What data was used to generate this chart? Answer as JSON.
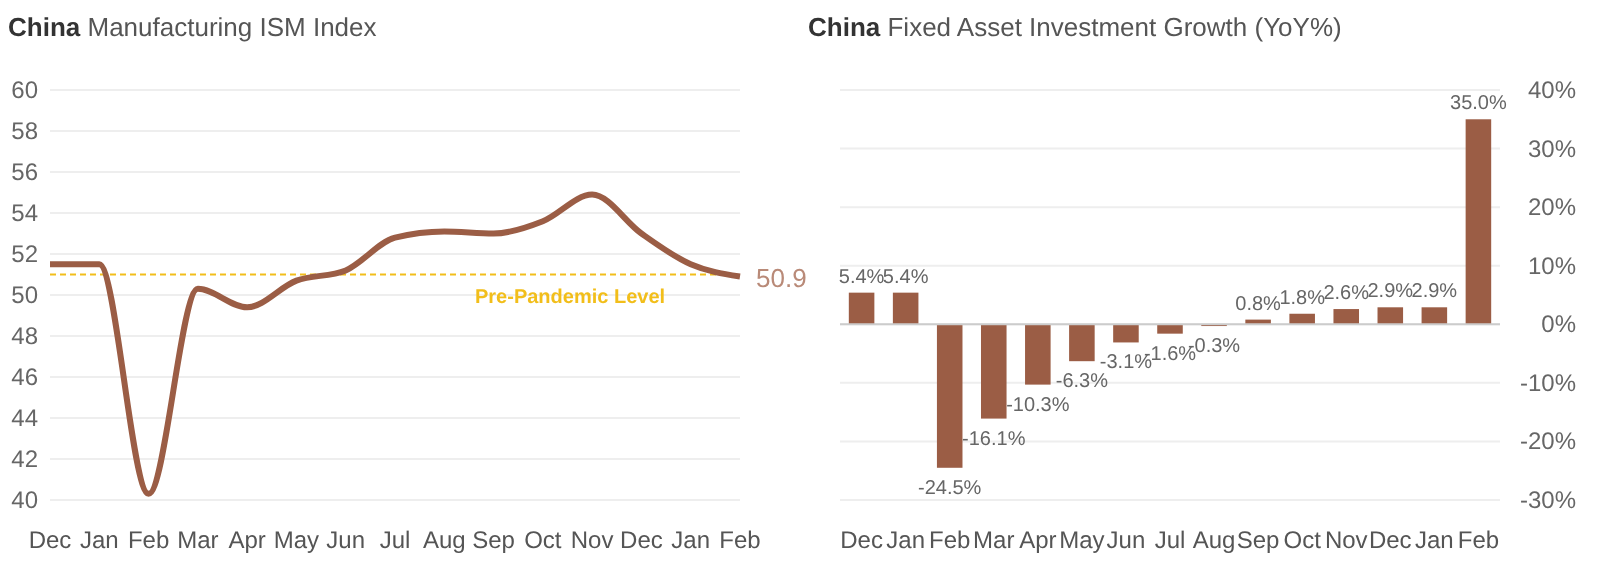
{
  "chart_data": [
    {
      "type": "line",
      "title": "China Manufacturing ISM Index",
      "categories": [
        "Dec",
        "Jan",
        "Feb",
        "Mar",
        "Apr",
        "May",
        "Jun",
        "Jul",
        "Aug",
        "Sep",
        "Oct",
        "Nov",
        "Dec",
        "Jan",
        "Feb"
      ],
      "series": [
        {
          "color": "#9b5d45",
          "values": [
            51.5,
            51.5,
            40.3,
            50.3,
            49.4,
            50.7,
            51.2,
            52.8,
            53.1,
            53.0,
            53.6,
            54.9,
            53.0,
            51.5,
            50.9
          ],
          "value_labels": [
            null,
            null,
            null,
            null,
            null,
            null,
            null,
            null,
            null,
            null,
            null,
            null,
            null,
            null,
            "50.9"
          ]
        }
      ],
      "ylim": [
        40,
        60
      ],
      "yticks": [
        40,
        42,
        44,
        46,
        48,
        50,
        52,
        54,
        56,
        58,
        60
      ],
      "grid": "y",
      "marker": "none",
      "line_style": "solid",
      "ref_lines": [
        {
          "axis": "y",
          "value": 51,
          "label": "Pre-Pandemic Level",
          "color": "#f2be1a",
          "line_style": "dashed"
        }
      ]
    },
    {
      "type": "bar",
      "title": "China Fixed Asset Investment Growth (YoY%)",
      "categories": [
        "Dec",
        "Jan",
        "Feb",
        "Mar",
        "Apr",
        "May",
        "Jun",
        "Jul",
        "Aug",
        "Sep",
        "Oct",
        "Nov",
        "Dec",
        "Jan",
        "Feb"
      ],
      "series": [
        {
          "color": "#9b5d45",
          "values": [
            5.4,
            5.4,
            -24.5,
            -16.1,
            -10.3,
            -6.3,
            -3.1,
            -1.6,
            -0.3,
            0.8,
            1.8,
            2.6,
            2.9,
            2.9,
            35.0
          ],
          "value_labels": [
            "5.4%",
            "5.4%",
            "-24.5%",
            "-16.1%",
            "-10.3%",
            "-6.3%",
            "-3.1%",
            "-1.6%",
            "-0.3%",
            "0.8%",
            "1.8%",
            "2.6%",
            "2.9%",
            "2.9%",
            "35.0%"
          ]
        }
      ],
      "ylim": [
        -30,
        40
      ],
      "yticks": [
        {
          "value": -30,
          "label": "-30%"
        },
        {
          "value": -20,
          "label": "-20%"
        },
        {
          "value": -10,
          "label": "-10%"
        },
        {
          "value": 0,
          "label": "0%"
        },
        {
          "value": 10,
          "label": "10%"
        },
        {
          "value": 20,
          "label": "20%"
        },
        {
          "value": 30,
          "label": "30%"
        },
        {
          "value": 40,
          "label": "40%"
        }
      ],
      "grid": "y",
      "ref_lines": [
        {
          "axis": "y",
          "value": 0,
          "label": null,
          "color": "#cccccc"
        }
      ]
    }
  ]
}
